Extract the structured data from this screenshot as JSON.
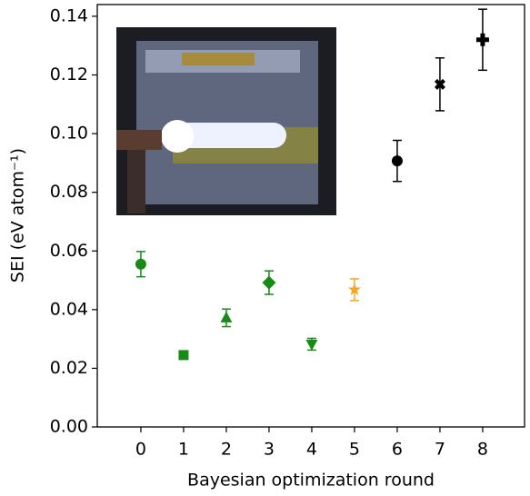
{
  "chart_data": {
    "type": "scatter",
    "xlabel": "Bayesian optimization round",
    "ylabel": "SEI (eV atom⁻¹)",
    "x": [
      0,
      1,
      2,
      3,
      4,
      5,
      6,
      7,
      8
    ],
    "values": [
      0.0555,
      0.0245,
      0.0372,
      0.0492,
      0.0282,
      0.0468,
      0.0907,
      0.1168,
      0.132
    ],
    "errors": [
      0.0043,
      0.001,
      0.003,
      0.004,
      0.002,
      0.0037,
      0.007,
      0.009,
      0.0104
    ],
    "markers": [
      "o",
      "s",
      "^",
      "D",
      "v",
      "*",
      "o",
      "X",
      "P"
    ],
    "colors": [
      "#188a18",
      "#188a18",
      "#188a18",
      "#188a18",
      "#188a18",
      "#f5a623",
      "#000000",
      "#000000",
      "#000000"
    ],
    "xlim": [
      -1.02,
      8.98
    ],
    "ylim": [
      0,
      0.144
    ],
    "xticks": [
      0,
      1,
      2,
      3,
      4,
      5,
      6,
      7,
      8
    ],
    "yticks": [
      {
        "value": 0,
        "label": "0.00"
      },
      {
        "value": 0.02,
        "label": "0.02"
      },
      {
        "value": 0.04,
        "label": "0.04"
      },
      {
        "value": 0.06,
        "label": "0.06"
      },
      {
        "value": 0.08,
        "label": "0.08"
      },
      {
        "value": 0.1,
        "label": "0.10"
      },
      {
        "value": 0.12,
        "label": "0.12"
      },
      {
        "value": 0.14,
        "label": "0.14"
      }
    ]
  }
}
